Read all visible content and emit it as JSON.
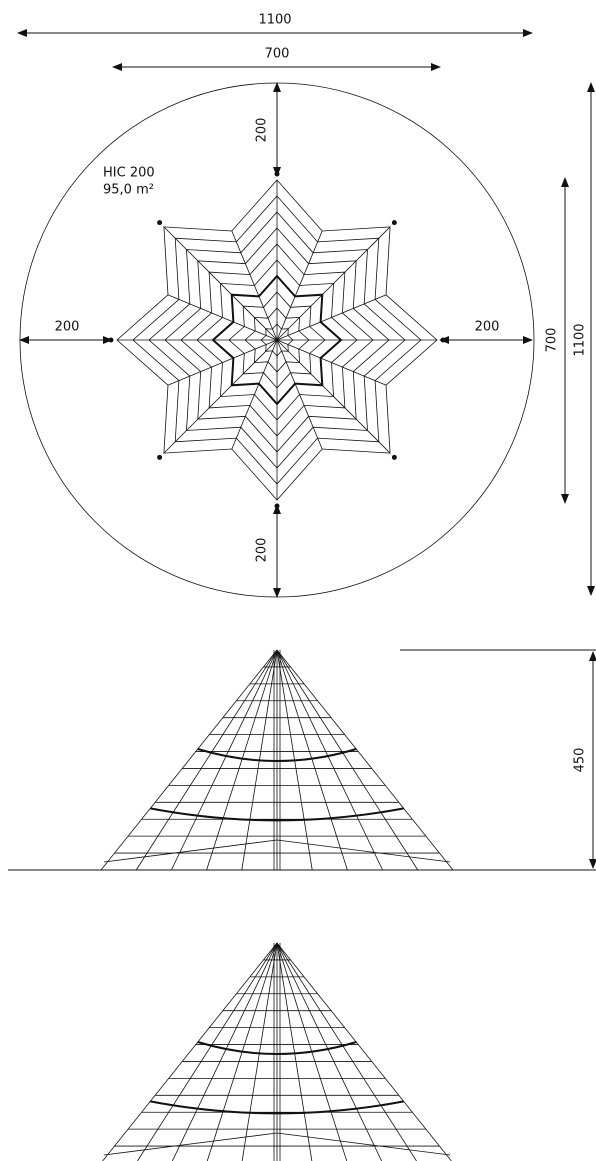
{
  "top_view": {
    "dimensions": {
      "overall_width": 1100,
      "net_width": 700,
      "top_clearance": 200,
      "left_clearance": 200,
      "right_clearance": 200,
      "bottom_clearance": 200,
      "net_span_vertical": 700,
      "overall_height": 1100
    },
    "label": "HIC 200",
    "area": "95,0 m²"
  },
  "side_view": {
    "height": 450
  }
}
